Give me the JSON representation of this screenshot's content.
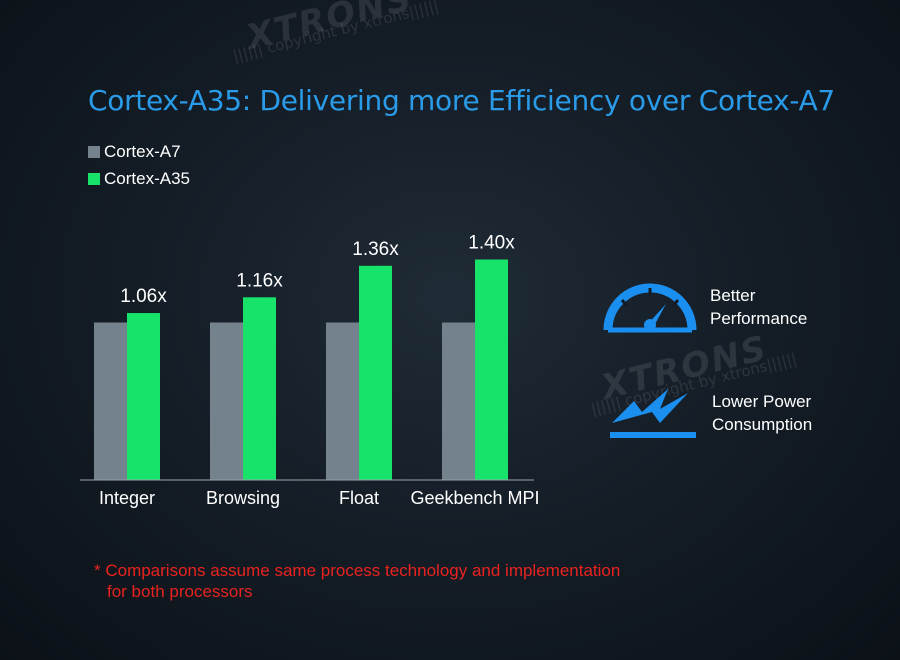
{
  "watermark": {
    "brand": "XTRONS",
    "copyright": "|||||| copyright by xtrons||||||"
  },
  "title": "Cortex-A35: Delivering more Efficiency over Cortex-A7",
  "colors": {
    "title": "#2a9be9",
    "cortex_a7": "#73828c",
    "cortex_a35": "#17e26a",
    "icon": "#1b8ff0",
    "footnote": "#e8231f"
  },
  "chart_data": {
    "type": "bar",
    "title": "",
    "categories": [
      "Integer",
      "Browsing",
      "Float",
      "Geekbench MPI"
    ],
    "series": [
      {
        "name": "Cortex-A7",
        "values": [
          1.0,
          1.0,
          1.0,
          1.0
        ]
      },
      {
        "name": "Cortex-A35",
        "values": [
          1.06,
          1.16,
          1.36,
          1.4
        ]
      }
    ],
    "data_labels": [
      "1.06x",
      "1.16x",
      "1.36x",
      "1.40x"
    ],
    "ylim": [
      0,
      1.5
    ],
    "grid": false,
    "y_axis_shown": false,
    "legend_position": "top-left"
  },
  "features": [
    {
      "icon": "speedometer-icon",
      "lines": [
        "Better",
        "Performance"
      ]
    },
    {
      "icon": "lightning-bolt-icon",
      "lines": [
        "Lower Power",
        "Consumption"
      ]
    }
  ],
  "footnote": {
    "line1": "* Comparisons assume same process technology and implementation",
    "line2": "for both processors"
  }
}
